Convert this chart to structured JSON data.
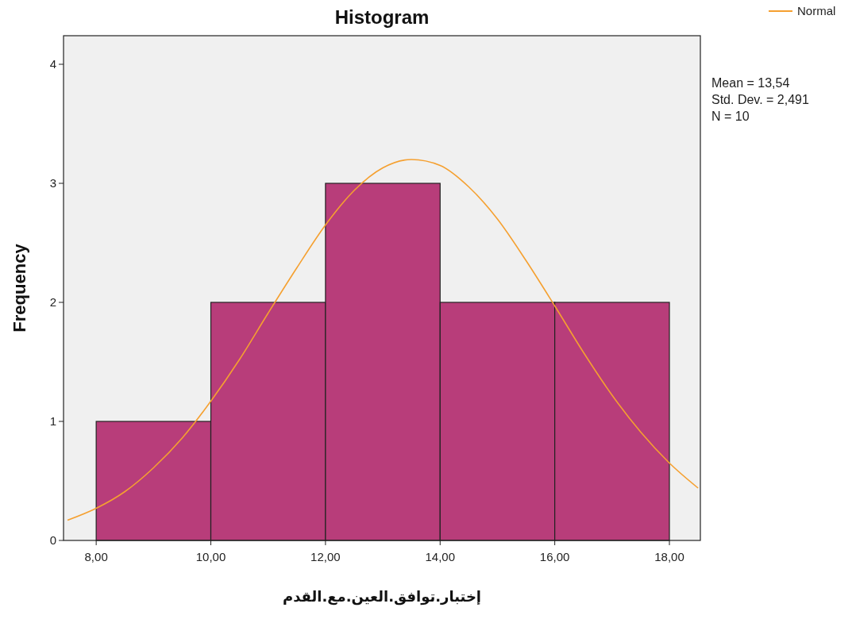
{
  "chart_data": {
    "type": "histogram",
    "title": "Histogram",
    "xlabel": "إختبار.توافق.العين.مع.القدم",
    "ylabel": "Frequency",
    "bins": [
      8,
      10,
      12,
      14,
      16,
      18
    ],
    "values": [
      1,
      2,
      3,
      2,
      2
    ],
    "color": "#b83d7a",
    "series": [
      {
        "name": "Normal",
        "type": "line",
        "color": "#f5a030",
        "x": [
          7.5,
          8,
          8.5,
          9,
          9.5,
          10,
          10.5,
          11,
          11.5,
          12,
          12.5,
          13,
          13.5,
          14,
          14.5,
          15,
          15.5,
          16,
          16.5,
          17,
          17.5,
          18,
          18.5
        ],
        "values": [
          0.17,
          0.27,
          0.41,
          0.61,
          0.86,
          1.17,
          1.52,
          1.91,
          2.29,
          2.65,
          2.94,
          3.13,
          3.2,
          3.15,
          2.97,
          2.7,
          2.35,
          1.97,
          1.58,
          1.22,
          0.91,
          0.65,
          0.44
        ]
      }
    ],
    "xlim": [
      7.43,
      18.54
    ],
    "ylim": [
      0,
      4.24
    ],
    "xticks": [
      {
        "value": 8,
        "label": "8,00"
      },
      {
        "value": 10,
        "label": "10,00"
      },
      {
        "value": 12,
        "label": "12,00"
      },
      {
        "value": 14,
        "label": "14,00"
      },
      {
        "value": 16,
        "label": "16,00"
      },
      {
        "value": 18,
        "label": "18,00"
      }
    ],
    "yticks": [
      0,
      1,
      2,
      3,
      4
    ],
    "annotations": [
      "Mean = 13,54",
      "Std. Dev. = 2,491",
      "N = 10"
    ],
    "legend": "top right",
    "grid": false
  }
}
